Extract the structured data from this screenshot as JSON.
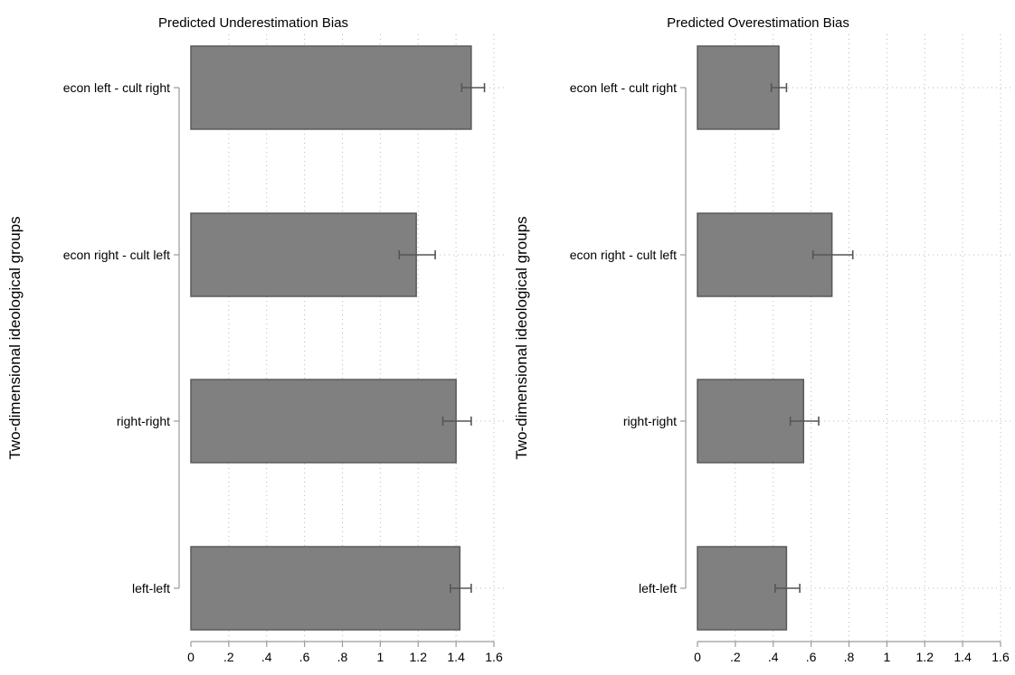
{
  "chart_data": [
    {
      "type": "bar",
      "orientation": "horizontal",
      "title": "Predicted Underestimation Bias",
      "ylabel": "Two-dimensional ideological groups",
      "xlabel": "",
      "categories": [
        "econ left - cult right",
        "econ right - cult left",
        "right-right",
        "left-left"
      ],
      "values": [
        1.48,
        1.19,
        1.4,
        1.42
      ],
      "ci_low": [
        1.43,
        1.1,
        1.33,
        1.37
      ],
      "ci_high": [
        1.55,
        1.29,
        1.48,
        1.48
      ],
      "xlim": [
        0,
        1.6
      ],
      "xticks": [
        0,
        0.2,
        0.4,
        0.6,
        0.8,
        1,
        1.2,
        1.4,
        1.6
      ],
      "xtick_labels": [
        "0",
        ".2",
        ".4",
        ".6",
        ".8",
        "1",
        "1.2",
        "1.4",
        "1.6"
      ],
      "grid": true,
      "bar_color": "#808080",
      "bar_edge_color": "#5a5a5a",
      "errorbar_color": "#555555"
    },
    {
      "type": "bar",
      "orientation": "horizontal",
      "title": "Predicted Overestimation Bias",
      "ylabel": "Two-dimensional ideological groups",
      "xlabel": "",
      "categories": [
        "econ left - cult right",
        "econ right - cult left",
        "right-right",
        "left-left"
      ],
      "values": [
        0.43,
        0.71,
        0.56,
        0.47
      ],
      "ci_low": [
        0.39,
        0.61,
        0.49,
        0.41
      ],
      "ci_high": [
        0.47,
        0.82,
        0.64,
        0.54
      ],
      "xlim": [
        0,
        1.6
      ],
      "xticks": [
        0,
        0.2,
        0.4,
        0.6,
        0.8,
        1,
        1.2,
        1.4,
        1.6
      ],
      "xtick_labels": [
        "0",
        ".2",
        ".4",
        ".6",
        ".8",
        "1",
        "1.2",
        "1.4",
        "1.6"
      ],
      "grid": true,
      "bar_color": "#808080",
      "bar_edge_color": "#5a5a5a",
      "errorbar_color": "#555555"
    }
  ]
}
